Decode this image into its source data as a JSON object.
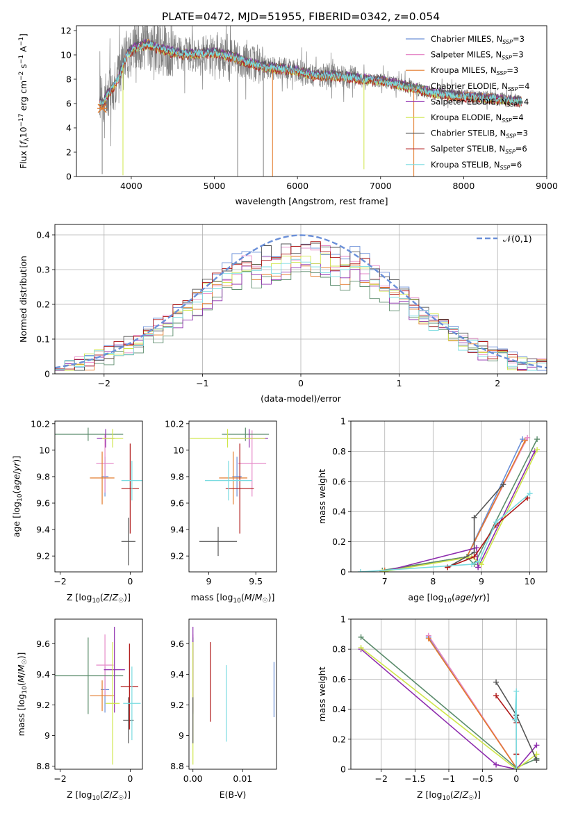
{
  "figure_title": "PLATE=0472, MJD=51955, FIBERID=0342, z=0.054",
  "colors": {
    "Chabrier MILES": "#6a8fd8",
    "Salpeter MILES": "#e68ac8",
    "Kroupa MILES": "#e37a2a",
    "Chabrier ELODIE": "#5b8c6c",
    "Salpeter ELODIE": "#8e2dae",
    "Kroupa ELODIE": "#cfe64a",
    "Chabrier STELIB": "#555555",
    "Salpeter STELIB": "#b01818",
    "Kroupa STELIB": "#7adbe0",
    "data": "#808080",
    "normal": "#6a8fd8"
  },
  "chart_data": [
    {
      "type": "line",
      "id": "spectrum",
      "xlabel": "wavelength [Angstrom, rest frame]",
      "ylabel": "Flux [f_λ10^{-17} erg cm^{-2} s^{-1} A^{-1}]",
      "xlim": [
        3340,
        9000
      ],
      "ylim": [
        0,
        12.4
      ],
      "xticks": [
        4000,
        5000,
        6000,
        7000,
        8000,
        9000
      ],
      "yticks": [
        0,
        2,
        4,
        6,
        8,
        10,
        12
      ],
      "legend_position": "top-right",
      "legend": [
        {
          "model": "Chabrier MILES",
          "nssp": "3"
        },
        {
          "model": "Salpeter MILES",
          "nssp": "3"
        },
        {
          "model": "Kroupa MILES",
          "nssp": "3"
        },
        {
          "model": "Chabrier ELODIE",
          "nssp": "4"
        },
        {
          "model": "Salpeter ELODIE",
          "nssp": "4"
        },
        {
          "model": "Kroupa ELODIE",
          "nssp": "4"
        },
        {
          "model": "Chabrier STELIB",
          "nssp": "3"
        },
        {
          "model": "Salpeter STELIB",
          "nssp": "6"
        },
        {
          "model": "Kroupa STELIB",
          "nssp": "6"
        }
      ],
      "continuum": {
        "x": [
          3620,
          3660,
          3700,
          3780,
          3850,
          3950,
          4050,
          4200,
          4400,
          4600,
          4800,
          5000,
          5200,
          5400,
          5600,
          5800,
          6000,
          6200,
          6400,
          6600,
          6800,
          7000,
          7200,
          7400,
          7600,
          7800,
          8000,
          8200,
          8400,
          8600,
          8700
        ],
        "y": [
          6.2,
          5.9,
          6.6,
          7.3,
          8.2,
          10.1,
          10.6,
          10.9,
          10.4,
          10.1,
          10.1,
          10.2,
          9.9,
          9.4,
          9.0,
          8.9,
          8.7,
          8.3,
          8.3,
          8.2,
          8.0,
          7.9,
          7.6,
          7.3,
          6.9,
          6.7,
          6.6,
          6.5,
          6.4,
          6.2,
          6.2
        ]
      },
      "spikes": [
        {
          "x": 3650,
          "to": 0.2
        },
        {
          "x": 3900,
          "to": 0.1
        },
        {
          "x": 5280,
          "to": 0.0
        },
        {
          "x": 5590,
          "to": 0.0
        },
        {
          "x": 5700,
          "to": 0.0
        },
        {
          "x": 6800,
          "to": 0.6
        },
        {
          "x": 7400,
          "to": 0.0
        }
      ]
    },
    {
      "type": "step-histogram",
      "id": "residuals",
      "xlabel": "(data-model)/error",
      "ylabel": "Normed distribution",
      "xlim": [
        -2.5,
        2.5
      ],
      "ylim": [
        0,
        0.43
      ],
      "xticks": [
        -2,
        -1,
        0,
        1,
        2
      ],
      "yticks": [
        0.0,
        0.1,
        0.2,
        0.3,
        0.4
      ],
      "legend_position": "top-right",
      "legend_label": "𝒩(0,1)",
      "bin_width": 0.1,
      "grid": true
    },
    {
      "type": "scatter-errorbar",
      "id": "age-vs-Z",
      "xlabel": "Z [log10(Z/Z☉)]",
      "ylabel": "age [log10(age/yr)]",
      "xlim": [
        -2.15,
        0.35
      ],
      "ylim": [
        9.08,
        10.22
      ],
      "xticks": [
        -2,
        0
      ],
      "yticks": [
        9.2,
        9.4,
        9.6,
        9.8,
        10.0,
        10.2
      ],
      "points": [
        {
          "m": "Chabrier MILES",
          "x": -0.72,
          "xe": 0.1,
          "y": 9.8,
          "ye": 0.15
        },
        {
          "m": "Salpeter MILES",
          "x": -0.72,
          "xe": 0.25,
          "y": 9.9,
          "ye": 0.22
        },
        {
          "m": "Kroupa MILES",
          "x": -0.8,
          "xe": 0.35,
          "y": 9.79,
          "ye": 0.2
        },
        {
          "m": "Chabrier ELODIE",
          "x": -1.2,
          "xe": 1.0,
          "y": 10.12,
          "ye": 0.05
        },
        {
          "m": "Salpeter ELODIE",
          "x": -0.7,
          "xe": 0.25,
          "y": 10.09,
          "ye": 0.07
        },
        {
          "m": "Kroupa ELODIE",
          "x": -0.5,
          "xe": 0.3,
          "y": 10.09,
          "ye": 0.07
        },
        {
          "m": "Chabrier STELIB",
          "x": -0.05,
          "xe": 0.2,
          "y": 9.31,
          "ye": 0.18
        },
        {
          "m": "Salpeter STELIB",
          "x": 0.0,
          "xe": 0.25,
          "y": 9.71,
          "ye": 0.34
        },
        {
          "m": "Kroupa STELIB",
          "x": 0.05,
          "xe": 0.3,
          "y": 9.77,
          "ye": 0.15
        }
      ]
    },
    {
      "type": "scatter-errorbar",
      "id": "age-vs-mass",
      "xlabel": "mass [log10(M/M☉)]",
      "ylabel": "",
      "xlim": [
        8.79,
        9.72
      ],
      "ylim": [
        9.08,
        10.22
      ],
      "xticks": [
        9.0,
        9.5
      ],
      "yticks": [
        9.2,
        9.4,
        9.6,
        9.8,
        10.0,
        10.2
      ],
      "points": [
        {
          "m": "Chabrier MILES",
          "x": 9.3,
          "xe": 0.05,
          "y": 9.8,
          "ye": 0.15
        },
        {
          "m": "Salpeter MILES",
          "x": 9.46,
          "xe": 0.15,
          "y": 9.9,
          "ye": 0.25
        },
        {
          "m": "Kroupa MILES",
          "x": 9.26,
          "xe": 0.15,
          "y": 9.79,
          "ye": 0.2
        },
        {
          "m": "Chabrier ELODIE",
          "x": 9.39,
          "xe": 0.25,
          "y": 10.12,
          "ye": 0.05
        },
        {
          "m": "Salpeter ELODIE",
          "x": 9.43,
          "xe": 0.2,
          "y": 10.09,
          "ye": 0.07
        },
        {
          "m": "Kroupa ELODIE",
          "x": 9.2,
          "xe": 0.4,
          "y": 10.09,
          "ye": 0.07
        },
        {
          "m": "Chabrier STELIB",
          "x": 9.1,
          "xe": 0.2,
          "y": 9.31,
          "ye": 0.11
        },
        {
          "m": "Salpeter STELIB",
          "x": 9.33,
          "xe": 0.15,
          "y": 9.71,
          "ye": 0.34
        },
        {
          "m": "Kroupa STELIB",
          "x": 9.21,
          "xe": 0.25,
          "y": 9.77,
          "ye": 0.15
        }
      ]
    },
    {
      "type": "line",
      "id": "weight-vs-age",
      "xlabel": "age [log10(age/yr)]",
      "ylabel": "mass weight",
      "xlim": [
        6.3,
        10.35
      ],
      "ylim": [
        0,
        1.0
      ],
      "xticks": [
        7,
        8,
        9,
        10
      ],
      "yticks": [
        0.0,
        0.2,
        0.4,
        0.6,
        0.8,
        1.0
      ],
      "grid": true,
      "series": [
        {
          "m": "Chabrier MILES",
          "x": [
            7.0,
            8.7,
            9.85
          ],
          "y": [
            0.01,
            0.1,
            0.88
          ]
        },
        {
          "m": "Salpeter MILES",
          "x": [
            7.0,
            8.7,
            9.95
          ],
          "y": [
            0.01,
            0.1,
            0.89
          ]
        },
        {
          "m": "Kroupa MILES",
          "x": [
            7.0,
            8.7,
            9.9
          ],
          "y": [
            0.01,
            0.1,
            0.87
          ]
        },
        {
          "m": "Chabrier ELODIE",
          "x": [
            6.95,
            8.7,
            8.85,
            10.15
          ],
          "y": [
            0.01,
            0.1,
            0.05,
            0.88
          ]
        },
        {
          "m": "Salpeter ELODIE",
          "x": [
            6.95,
            8.9,
            8.93,
            10.1
          ],
          "y": [
            0.0,
            0.16,
            0.03,
            0.8
          ]
        },
        {
          "m": "Kroupa ELODIE",
          "x": [
            6.95,
            8.8,
            9.0,
            10.15
          ],
          "y": [
            0.0,
            0.1,
            0.05,
            0.81
          ]
        },
        {
          "m": "Chabrier STELIB",
          "x": [
            8.3,
            8.85,
            8.85,
            9.45
          ],
          "y": [
            0.03,
            0.13,
            0.36,
            0.58
          ]
        },
        {
          "m": "Salpeter STELIB",
          "x": [
            8.3,
            8.85,
            9.3,
            9.95
          ],
          "y": [
            0.03,
            0.1,
            0.31,
            0.49
          ]
        },
        {
          "m": "Kroupa STELIB",
          "x": [
            6.5,
            8.8,
            8.95,
            9.3,
            10.0
          ],
          "y": [
            0.0,
            0.05,
            0.07,
            0.33,
            0.52
          ]
        }
      ]
    },
    {
      "type": "scatter-errorbar",
      "id": "mass-vs-Z",
      "xlabel": "Z [log10(Z/Z☉)]",
      "ylabel": "mass [log10(M/M☉)]",
      "xlim": [
        -2.15,
        0.35
      ],
      "ylim": [
        8.78,
        9.76
      ],
      "xticks": [
        -2,
        0
      ],
      "yticks": [
        8.8,
        9.0,
        9.2,
        9.4,
        9.6
      ],
      "points": [
        {
          "m": "Chabrier MILES",
          "x": -0.72,
          "xe": 0.12,
          "y": 9.3,
          "ye": 0.15
        },
        {
          "m": "Salpeter MILES",
          "x": -0.72,
          "xe": 0.25,
          "y": 9.46,
          "ye": 0.2
        },
        {
          "m": "Kroupa MILES",
          "x": -0.8,
          "xe": 0.35,
          "y": 9.26,
          "ye": 0.1
        },
        {
          "m": "Chabrier ELODIE",
          "x": -1.2,
          "xe": 1.0,
          "y": 9.39,
          "ye": 0.25
        },
        {
          "m": "Salpeter ELODIE",
          "x": -0.45,
          "xe": 0.3,
          "y": 9.43,
          "ye": 0.28
        },
        {
          "m": "Kroupa ELODIE",
          "x": -0.5,
          "xe": 0.2,
          "y": 9.21,
          "ye": 0.4
        },
        {
          "m": "Chabrier STELIB",
          "x": -0.05,
          "xe": 0.15,
          "y": 9.1,
          "ye": 0.15
        },
        {
          "m": "Salpeter STELIB",
          "x": -0.02,
          "xe": 0.25,
          "y": 9.32,
          "ye": 0.28
        },
        {
          "m": "Kroupa STELIB",
          "x": 0.05,
          "xe": 0.25,
          "y": 9.21,
          "ye": 0.24
        }
      ]
    },
    {
      "type": "scatter-errorbar",
      "id": "mass-vs-ebv",
      "xlabel": "E(B-V)",
      "ylabel": "",
      "xlim": [
        -0.0008,
        0.0168
      ],
      "ylim": [
        8.78,
        9.76
      ],
      "xticks": [
        0.0,
        0.01
      ],
      "yticks": [
        8.8,
        9.0,
        9.2,
        9.4,
        9.6
      ],
      "points": [
        {
          "m": "Chabrier MILES",
          "x": 0.0163,
          "xe": 0,
          "y": 9.3,
          "ye": 0.18
        },
        {
          "m": "Salpeter MILES",
          "x": 0.0,
          "xe": 0,
          "y": 9.46,
          "ye": 0.2
        },
        {
          "m": "Kroupa MILES",
          "x": 0.0,
          "xe": 0,
          "y": 9.26,
          "ye": 0.1
        },
        {
          "m": "Chabrier ELODIE",
          "x": 0.0,
          "xe": 0,
          "y": 9.39,
          "ye": 0.25
        },
        {
          "m": "Salpeter ELODIE",
          "x": 0.0,
          "xe": 0,
          "y": 9.43,
          "ye": 0.28
        },
        {
          "m": "Kroupa ELODIE",
          "x": 0.0,
          "xe": 0,
          "y": 9.21,
          "ye": 0.4
        },
        {
          "m": "Chabrier STELIB",
          "x": 0.0,
          "xe": 0,
          "y": 9.1,
          "ye": 0.15
        },
        {
          "m": "Salpeter STELIB",
          "x": 0.0035,
          "xe": 0,
          "y": 9.35,
          "ye": 0.26
        },
        {
          "m": "Kroupa STELIB",
          "x": 0.0067,
          "xe": 0,
          "y": 9.21,
          "ye": 0.25
        }
      ]
    },
    {
      "type": "line",
      "id": "weight-vs-Z",
      "xlabel": "Z [log10(Z/Z☉)]",
      "ylabel": "mass weight",
      "xlim": [
        -2.45,
        0.45
      ],
      "ylim": [
        0,
        1.0
      ],
      "xticks": [
        -2.0,
        -1.5,
        -1.0,
        -0.5,
        0.0
      ],
      "yticks": [
        0.0,
        0.2,
        0.4,
        0.6,
        0.8,
        1.0
      ],
      "grid": true,
      "series": [
        {
          "m": "Chabrier MILES",
          "x": [
            -1.3,
            0.0,
            0.0
          ],
          "y": [
            0.88,
            0.01,
            0.1
          ]
        },
        {
          "m": "Salpeter MILES",
          "x": [
            -1.3,
            0.0,
            0.0
          ],
          "y": [
            0.89,
            0.01,
            0.1
          ]
        },
        {
          "m": "Kroupa MILES",
          "x": [
            -1.3,
            0.0,
            0.0
          ],
          "y": [
            0.87,
            0.01,
            0.1
          ]
        },
        {
          "m": "Chabrier ELODIE",
          "x": [
            -2.3,
            0.0,
            0.3
          ],
          "y": [
            0.88,
            0.01,
            0.07
          ]
        },
        {
          "m": "Salpeter ELODIE",
          "x": [
            -2.3,
            -0.3,
            0.0,
            0.3
          ],
          "y": [
            0.8,
            0.03,
            0.0,
            0.16
          ]
        },
        {
          "m": "Kroupa ELODIE",
          "x": [
            -2.3,
            0.0,
            0.3
          ],
          "y": [
            0.81,
            0.0,
            0.1
          ]
        },
        {
          "m": "Chabrier STELIB",
          "x": [
            -0.3,
            0.0,
            0.3
          ],
          "y": [
            0.58,
            0.36,
            0.06
          ]
        },
        {
          "m": "Salpeter STELIB",
          "x": [
            -0.3,
            0.0,
            0.0
          ],
          "y": [
            0.49,
            0.31,
            0.1
          ]
        },
        {
          "m": "Kroupa STELIB",
          "x": [
            -0.02,
            0.0,
            0.0
          ],
          "y": [
            0.33,
            0.52,
            0.0
          ]
        }
      ]
    }
  ]
}
